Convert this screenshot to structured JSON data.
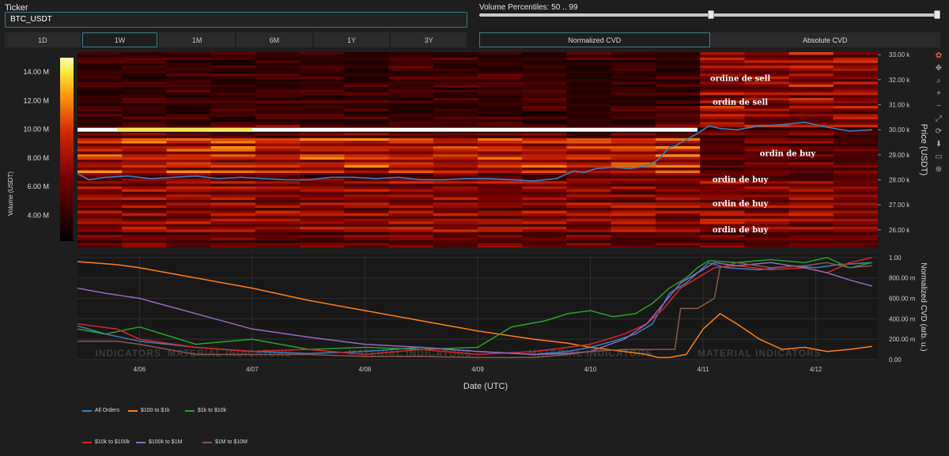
{
  "controls": {
    "ticker_label": "Ticker",
    "ticker_value": "BTC_USDT",
    "volume_percentiles_label": "Volume Percentiles: 50 .. 99",
    "slider_low": 50,
    "slider_high": 99,
    "ranges": [
      {
        "label": "1D",
        "active": false
      },
      {
        "label": "1W",
        "active": true
      },
      {
        "label": "1M",
        "active": false
      },
      {
        "label": "6M",
        "active": false
      },
      {
        "label": "1Y",
        "active": false
      },
      {
        "label": "3Y",
        "active": false
      }
    ],
    "cvd_modes": [
      {
        "label": "Normalized CVD",
        "active": true
      },
      {
        "label": "Absolute CVD",
        "active": false
      }
    ]
  },
  "modebar_icons": [
    "plotly-logo-icon",
    "pan-icon",
    "zoom-icon",
    "zoom-in-icon",
    "zoom-out-icon",
    "autoscale-icon",
    "reset-axes-icon",
    "download-icon",
    "compare-hover-icon",
    "spike-lines-icon"
  ],
  "chart_data": [
    {
      "type": "heatmap",
      "colorbar_title": "Volume (USDT)",
      "colorbar_ticks": [
        "14.00 M",
        "12.00 M",
        "10.00 M",
        "8.00 M",
        "6.00 M",
        "4.00 M"
      ],
      "colorbar_tick_values": [
        14,
        12,
        10,
        8,
        6,
        4
      ],
      "colorbar_range": [
        2.2,
        15
      ],
      "ylabel": "Price (USDT)",
      "ylim": [
        25300,
        33100
      ],
      "y_ticks": [
        "33.00 k",
        "32.00 k",
        "31.00 k",
        "30.00 k",
        "29.00 k",
        "28.00 k",
        "27.00 k",
        "26.00 k"
      ],
      "y_tick_values": [
        33000,
        32000,
        31000,
        30000,
        29000,
        28000,
        27000,
        26000
      ],
      "annotations": [
        {
          "text": "ordine de sell",
          "x": 11.33,
          "y": 31950
        },
        {
          "text": "ordin de sell",
          "x": 11.33,
          "y": 31000
        },
        {
          "text": "ordin de buy",
          "x": 11.75,
          "y": 28950
        },
        {
          "text": "ordin de buy",
          "x": 11.33,
          "y": 27900
        },
        {
          "text": "ordin de buy",
          "x": 11.33,
          "y": 26950
        },
        {
          "text": "ordin de buy",
          "x": 11.33,
          "y": 25900
        }
      ],
      "price_line": {
        "name": "Price",
        "color": "#3a7fc1",
        "x": [
          5.45,
          5.55,
          5.7,
          5.9,
          6.1,
          6.3,
          6.5,
          6.7,
          6.9,
          7.1,
          7.3,
          7.5,
          7.7,
          7.9,
          8.1,
          8.3,
          8.5,
          8.7,
          8.9,
          9.1,
          9.3,
          9.5,
          9.7,
          9.85,
          9.95,
          10.05,
          10.2,
          10.35,
          10.5,
          10.6,
          10.7,
          10.75,
          10.85,
          10.95,
          11.05,
          11.15,
          11.3,
          11.5,
          11.7,
          11.9,
          12.1,
          12.3,
          12.5
        ],
        "y": [
          28250,
          28000,
          28100,
          28150,
          28050,
          28100,
          28150,
          28050,
          28100,
          28050,
          28000,
          28000,
          28100,
          28100,
          28050,
          28100,
          28000,
          28000,
          28050,
          28050,
          28000,
          27950,
          28050,
          28350,
          28300,
          28450,
          28500,
          28450,
          28550,
          28800,
          29300,
          29350,
          29600,
          29850,
          30150,
          30050,
          30000,
          30150,
          30200,
          30300,
          30100,
          29950,
          30000
        ]
      },
      "wall_line": {
        "name": "Bid wall",
        "color": "#ffffff",
        "y": 30000,
        "x0": 5.45,
        "x1": 10.95
      }
    },
    {
      "type": "line",
      "xlabel": "Date (UTC)",
      "ylabel": "Normalized CVD (arb. u.)",
      "ylim": [
        0,
        1.03
      ],
      "xlim": [
        5.45,
        12.55
      ],
      "x_ticks": [
        "4/06",
        "4/07",
        "4/08",
        "4/09",
        "4/10",
        "4/11",
        "4/12"
      ],
      "x_tick_values": [
        6,
        7,
        8,
        9,
        10,
        11,
        12
      ],
      "y_ticks": [
        "1.00",
        "800.00 m",
        "600.00 m",
        "400.00 m",
        "200.00 m",
        "0.00"
      ],
      "y_tick_values": [
        1,
        0.8,
        0.6,
        0.4,
        0.2,
        0
      ],
      "watermarks": [
        "INDICATORS",
        "MATERIAL INDICATORS",
        "MATERIAL INDICATORS",
        "MATERIAL INDICATORS",
        "MATERIAL INDICATORS"
      ],
      "watermark_x": [
        5.9,
        6.8,
        8.4,
        10.0,
        11.5
      ],
      "series": [
        {
          "name": "All Orders",
          "color": "#3a7fc1",
          "x": [
            5.45,
            5.7,
            6.0,
            6.5,
            7.0,
            7.5,
            8.0,
            8.5,
            9.0,
            9.5,
            9.8,
            10.0,
            10.2,
            10.4,
            10.55,
            10.65,
            10.7,
            10.85,
            10.95,
            11.05,
            11.2,
            11.5,
            11.8,
            12.0,
            12.2,
            12.5
          ],
          "y": [
            0.33,
            0.25,
            0.18,
            0.12,
            0.08,
            0.06,
            0.08,
            0.12,
            0.08,
            0.05,
            0.08,
            0.12,
            0.18,
            0.25,
            0.35,
            0.55,
            0.65,
            0.75,
            0.85,
            0.95,
            0.9,
            0.88,
            0.92,
            0.9,
            0.93,
            0.95
          ]
        },
        {
          "name": "$100 to $1k",
          "color": "#ff7f0e",
          "x": [
            5.45,
            5.8,
            6.0,
            6.5,
            7.0,
            7.5,
            8.0,
            8.5,
            9.0,
            9.5,
            9.8,
            10.0,
            10.3,
            10.5,
            10.6,
            10.7,
            10.85,
            11.0,
            11.15,
            11.3,
            11.5,
            11.7,
            11.9,
            12.1,
            12.3,
            12.5
          ],
          "y": [
            0.96,
            0.93,
            0.9,
            0.8,
            0.7,
            0.58,
            0.48,
            0.38,
            0.28,
            0.2,
            0.16,
            0.12,
            0.08,
            0.05,
            0.02,
            0.02,
            0.05,
            0.3,
            0.45,
            0.35,
            0.2,
            0.1,
            0.12,
            0.08,
            0.1,
            0.13
          ]
        },
        {
          "name": "$1k to $10k",
          "color": "#2ca02c",
          "x": [
            5.45,
            5.7,
            6.0,
            6.5,
            7.0,
            7.5,
            8.0,
            8.5,
            9.0,
            9.3,
            9.6,
            9.8,
            10.0,
            10.2,
            10.4,
            10.55,
            10.7,
            10.85,
            10.95,
            11.05,
            11.3,
            11.6,
            11.9,
            12.1,
            12.3,
            12.5
          ],
          "y": [
            0.3,
            0.25,
            0.32,
            0.15,
            0.2,
            0.1,
            0.12,
            0.1,
            0.12,
            0.32,
            0.38,
            0.45,
            0.48,
            0.42,
            0.45,
            0.55,
            0.7,
            0.8,
            0.9,
            0.97,
            0.95,
            0.98,
            0.95,
            1.0,
            0.9,
            0.95
          ]
        },
        {
          "name": "$10k to $100k",
          "color": "#d62728",
          "x": [
            5.45,
            5.8,
            6.0,
            6.5,
            7.0,
            7.5,
            8.0,
            8.5,
            9.0,
            9.5,
            9.8,
            10.0,
            10.3,
            10.5,
            10.65,
            10.8,
            10.95,
            11.1,
            11.3,
            11.6,
            11.9,
            12.1,
            12.3,
            12.5
          ],
          "y": [
            0.35,
            0.3,
            0.2,
            0.12,
            0.08,
            0.1,
            0.05,
            0.1,
            0.05,
            0.08,
            0.12,
            0.15,
            0.25,
            0.35,
            0.5,
            0.7,
            0.8,
            0.9,
            0.92,
            0.88,
            0.9,
            0.85,
            0.95,
            1.0
          ]
        },
        {
          "name": "$100k to $1M",
          "color": "#9467bd",
          "x": [
            5.45,
            5.7,
            6.0,
            6.5,
            7.0,
            7.5,
            8.0,
            8.5,
            9.0,
            9.5,
            9.8,
            10.0,
            10.3,
            10.5,
            10.65,
            10.8,
            10.95,
            11.1,
            11.3,
            11.6,
            11.9,
            12.1,
            12.3,
            12.5
          ],
          "y": [
            0.7,
            0.65,
            0.6,
            0.45,
            0.3,
            0.22,
            0.15,
            0.12,
            0.08,
            0.05,
            0.06,
            0.08,
            0.2,
            0.35,
            0.55,
            0.75,
            0.85,
            0.95,
            0.92,
            0.95,
            0.9,
            0.85,
            0.78,
            0.72
          ]
        },
        {
          "name": "$1M to $10M",
          "color": "#8c564b",
          "x": [
            5.45,
            5.8,
            6.0,
            6.5,
            7.0,
            7.5,
            8.0,
            8.5,
            9.0,
            9.5,
            9.8,
            10.0,
            10.3,
            10.6,
            10.75,
            10.8,
            10.95,
            11.1,
            11.15,
            11.3,
            11.6,
            11.9,
            12.1,
            12.3,
            12.5
          ],
          "y": [
            0.18,
            0.18,
            0.15,
            0.05,
            0.05,
            0.05,
            0.03,
            0.03,
            0.02,
            0.02,
            0.05,
            0.08,
            0.1,
            0.1,
            0.1,
            0.5,
            0.5,
            0.6,
            0.9,
            0.95,
            0.9,
            0.92,
            0.95,
            0.9,
            0.92
          ]
        }
      ]
    }
  ]
}
